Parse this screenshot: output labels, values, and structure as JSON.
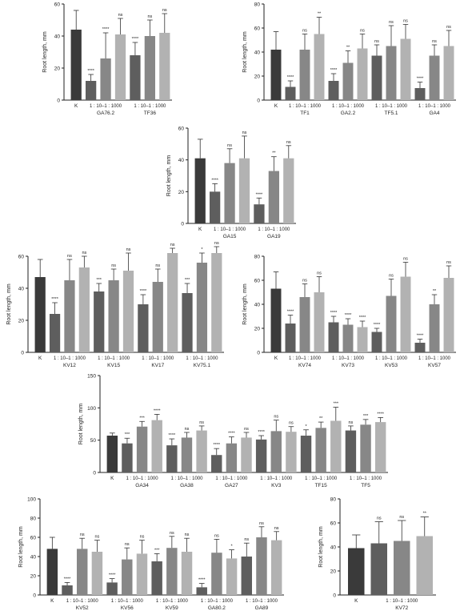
{
  "colors": {
    "control": "#3a3a3a",
    "dil_10": "#5e5e5e",
    "dil_100": "#878787",
    "dil_1000": "#b2b2b2",
    "axis": "#222222"
  },
  "chart_data": [
    {
      "type": "bar",
      "id": "p1",
      "ylabel": "Root length, mm",
      "ylim": [
        0,
        60
      ],
      "yticks": [
        0,
        20,
        40,
        60
      ],
      "control_label": "K",
      "dilution_label": "1 : 10–1 : 1000",
      "groups": [
        "GA76.2",
        "TF36"
      ],
      "control": {
        "value": 44,
        "err": 12
      },
      "series_values": [
        [
          12,
          4,
          "****"
        ],
        [
          26,
          16,
          "****"
        ],
        [
          41,
          10,
          "ns"
        ],
        [
          28,
          8,
          "****"
        ],
        [
          40,
          10,
          "ns"
        ],
        [
          42,
          12,
          "ns"
        ]
      ]
    },
    {
      "type": "bar",
      "id": "p2",
      "ylabel": "Root length, mm",
      "ylim": [
        0,
        80
      ],
      "yticks": [
        0,
        20,
        40,
        60,
        80
      ],
      "control_label": "K",
      "dilution_label": "1 : 10–1 : 1000",
      "groups": [
        "TF1",
        "GA2.2",
        "TF5.1",
        "GA4"
      ],
      "control": {
        "value": 42,
        "err": 15
      },
      "series_values": [
        [
          11,
          5,
          "****"
        ],
        [
          42,
          13,
          "ns"
        ],
        [
          55,
          14,
          "**"
        ],
        [
          16,
          6,
          "****"
        ],
        [
          31,
          10,
          "**"
        ],
        [
          43,
          12,
          "ns"
        ],
        [
          37,
          9,
          "ns"
        ],
        [
          45,
          17,
          "ns"
        ],
        [
          51,
          12,
          "ns"
        ],
        [
          10,
          5,
          "****"
        ],
        [
          37,
          9,
          "ns"
        ],
        [
          45,
          13,
          "ns"
        ]
      ]
    },
    {
      "type": "bar",
      "id": "p3",
      "ylabel": "Root length, mm",
      "ylim": [
        0,
        60
      ],
      "yticks": [
        0,
        20,
        40,
        60
      ],
      "control_label": "K",
      "dilution_label": "1 : 10–1 : 1000",
      "groups": [
        "GA15",
        "GA19"
      ],
      "control": {
        "value": 41,
        "err": 12
      },
      "series_values": [
        [
          20,
          5,
          "****"
        ],
        [
          38,
          9,
          "ns"
        ],
        [
          41,
          14,
          "ns"
        ],
        [
          12,
          4,
          "****"
        ],
        [
          33,
          9,
          "**"
        ],
        [
          41,
          8,
          "ns"
        ]
      ]
    },
    {
      "type": "bar",
      "id": "p4",
      "ylabel": "Root length, mm",
      "ylim": [
        0,
        60
      ],
      "yticks": [
        0,
        20,
        40,
        60
      ],
      "control_label": "K",
      "dilution_label": "1 : 10–1 : 1000",
      "groups": [
        "KV12",
        "KV15",
        "KV17",
        "KV75.1"
      ],
      "control": {
        "value": 47,
        "err": 11
      },
      "series_values": [
        [
          24,
          7,
          "****"
        ],
        [
          45,
          13,
          "ns"
        ],
        [
          53,
          7,
          "ns"
        ],
        [
          38,
          5,
          "***"
        ],
        [
          45,
          7,
          "ns"
        ],
        [
          51,
          11,
          "ns"
        ],
        [
          30,
          6,
          "****"
        ],
        [
          44,
          8,
          "ns"
        ],
        [
          62,
          3,
          "ns"
        ],
        [
          37,
          6,
          "***"
        ],
        [
          56,
          6,
          "*"
        ],
        [
          62,
          4,
          "ns"
        ]
      ]
    },
    {
      "type": "bar",
      "id": "p5",
      "ylabel": "Root length, mm",
      "ylim": [
        0,
        80
      ],
      "yticks": [
        0,
        20,
        40,
        60,
        80
      ],
      "control_label": "K",
      "dilution_label": "1 : 10–1 : 1000",
      "groups": [
        "KV74",
        "KV73",
        "KV53",
        "KV57"
      ],
      "control": {
        "value": 53,
        "err": 14
      },
      "series_values": [
        [
          24,
          7,
          "****"
        ],
        [
          46,
          11,
          "ns"
        ],
        [
          50,
          13,
          "ns"
        ],
        [
          25,
          5,
          "****"
        ],
        [
          23,
          5,
          "****"
        ],
        [
          21,
          5,
          "****"
        ],
        [
          17,
          3,
          "****"
        ],
        [
          47,
          14,
          "ns"
        ],
        [
          63,
          12,
          "ns"
        ],
        [
          8,
          3,
          "****"
        ],
        [
          40,
          8,
          "**"
        ],
        [
          62,
          10,
          "ns"
        ]
      ]
    },
    {
      "type": "bar",
      "id": "p6",
      "ylabel": "Root length, mm",
      "ylim": [
        0,
        150
      ],
      "yticks": [
        0,
        50,
        100,
        150
      ],
      "control_label": "K",
      "dilution_label": "1 : 10–1 : 1000",
      "groups": [
        "GA34",
        "GA38",
        "GA27",
        "KV3",
        "TF15",
        "TF5"
      ],
      "control": {
        "value": 57,
        "err": 4
      },
      "series_values": [
        [
          45,
          8,
          "***"
        ],
        [
          71,
          8,
          "***"
        ],
        [
          81,
          9,
          "****"
        ],
        [
          42,
          10,
          "****"
        ],
        [
          54,
          8,
          "ns"
        ],
        [
          65,
          7,
          "ns"
        ],
        [
          27,
          10,
          "****"
        ],
        [
          45,
          10,
          "****"
        ],
        [
          54,
          8,
          "ns"
        ],
        [
          51,
          6,
          "****"
        ],
        [
          64,
          17,
          "ns"
        ],
        [
          63,
          8,
          "ns"
        ],
        [
          57,
          9,
          "*"
        ],
        [
          69,
          9,
          "**"
        ],
        [
          80,
          21,
          "***"
        ],
        [
          65,
          7,
          "ns"
        ],
        [
          74,
          8,
          "***"
        ],
        [
          78,
          7,
          "****"
        ]
      ]
    },
    {
      "type": "bar",
      "id": "p7",
      "ylabel": "Root length, mm",
      "ylim": [
        0,
        100
      ],
      "yticks": [
        0,
        20,
        40,
        60,
        80,
        100
      ],
      "control_label": "K",
      "dilution_label": "1 : 10–1 : 1000",
      "groups": [
        "KV52",
        "KV56",
        "KV59",
        "GA80.2",
        "GA89"
      ],
      "control": {
        "value": 48,
        "err": 12
      },
      "series_values": [
        [
          10,
          3,
          "****"
        ],
        [
          48,
          11,
          "ns"
        ],
        [
          45,
          12,
          "ns"
        ],
        [
          13,
          4,
          "****"
        ],
        [
          37,
          12,
          "ns"
        ],
        [
          43,
          14,
          "ns"
        ],
        [
          35,
          8,
          "***"
        ],
        [
          49,
          12,
          "ns"
        ],
        [
          45,
          14,
          "ns"
        ],
        [
          8,
          4,
          "****"
        ],
        [
          44,
          14,
          "ns"
        ],
        [
          38,
          9,
          "*"
        ],
        [
          40,
          14,
          "ns"
        ],
        [
          60,
          11,
          "ns"
        ],
        [
          57,
          9,
          "ns"
        ]
      ]
    },
    {
      "type": "bar",
      "id": "p8",
      "ylabel": "Root length, mm",
      "ylim": [
        0,
        80
      ],
      "yticks": [
        0,
        20,
        40,
        60,
        80
      ],
      "control_label": "K",
      "dilution_label": "1 : 10–1 : 1000",
      "groups": [
        "KV72"
      ],
      "control": {
        "value": 39,
        "err": 11
      },
      "series_values": [
        [
          43,
          18,
          "ns"
        ],
        [
          45,
          17,
          "ns"
        ],
        [
          49,
          16,
          "**"
        ]
      ]
    }
  ]
}
